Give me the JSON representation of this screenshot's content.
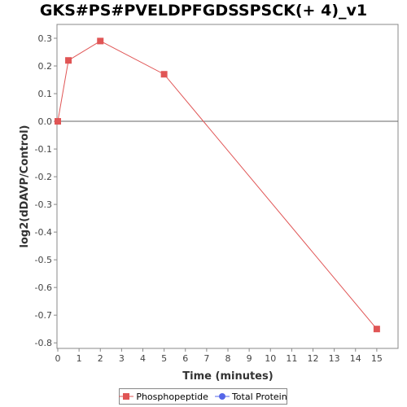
{
  "chart_data": {
    "type": "line",
    "title": "GKS#PS#PVELDPFGDSSPSCK(+ 4)_v1",
    "xlabel": "Time (minutes)",
    "ylabel": "log2(dDAVP/Control)",
    "xlim": [
      0,
      16
    ],
    "ylim": [
      -0.82,
      0.35
    ],
    "xticks": [
      0,
      1,
      2,
      3,
      4,
      5,
      6,
      7,
      8,
      9,
      10,
      11,
      12,
      13,
      14,
      15
    ],
    "yticks": [
      0.3,
      0.2,
      0.1,
      0.0,
      -0.1,
      -0.2,
      -0.3,
      -0.4,
      -0.5,
      -0.6,
      -0.7,
      -0.8
    ],
    "ytick_labels": [
      "0.3",
      "0.2",
      "0.1",
      "0.0",
      "-0.1",
      "-0.2",
      "-0.3",
      "-0.4",
      "-0.5",
      "-0.6",
      "-0.7",
      "-0.8"
    ],
    "grid": false,
    "zero_line": true,
    "legend_position": "bottom",
    "series": [
      {
        "name": "Phosphopeptide",
        "color": "#e05555",
        "marker": "square",
        "x": [
          0,
          0.5,
          2,
          5,
          15
        ],
        "y": [
          0.0,
          0.22,
          0.29,
          0.17,
          -0.75
        ]
      },
      {
        "name": "Total Protein",
        "color": "#5566e8",
        "marker": "circle",
        "x": [],
        "y": []
      }
    ]
  }
}
